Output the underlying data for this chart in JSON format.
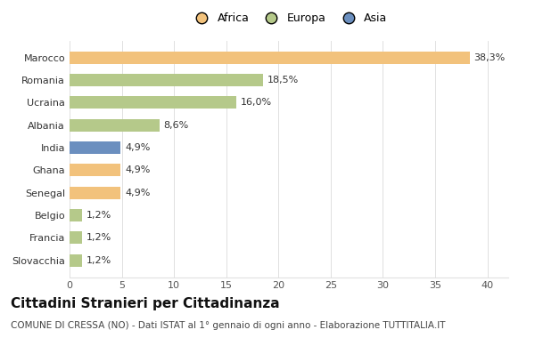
{
  "categories": [
    "Marocco",
    "Romania",
    "Ucraina",
    "Albania",
    "India",
    "Ghana",
    "Senegal",
    "Belgio",
    "Francia",
    "Slovacchia"
  ],
  "values": [
    38.3,
    18.5,
    16.0,
    8.6,
    4.9,
    4.9,
    4.9,
    1.2,
    1.2,
    1.2
  ],
  "labels": [
    "38,3%",
    "18,5%",
    "16,0%",
    "8,6%",
    "4,9%",
    "4,9%",
    "4,9%",
    "1,2%",
    "1,2%",
    "1,2%"
  ],
  "colors": [
    "#F2C27C",
    "#B5C98A",
    "#B5C98A",
    "#B5C98A",
    "#6B8FBF",
    "#F2C27C",
    "#F2C27C",
    "#B5C98A",
    "#B5C98A",
    "#B5C98A"
  ],
  "legend_labels": [
    "Africa",
    "Europa",
    "Asia"
  ],
  "legend_colors": [
    "#F2C27C",
    "#B5C98A",
    "#6B8FBF"
  ],
  "title": "Cittadini Stranieri per Cittadinanza",
  "subtitle": "COMUNE DI CRESSA (NO) - Dati ISTAT al 1° gennaio di ogni anno - Elaborazione TUTTITALIA.IT",
  "xlim": [
    0,
    42
  ],
  "background_color": "#ffffff",
  "grid_color": "#e0e0e0",
  "label_fontsize": 8,
  "ytick_fontsize": 8,
  "xtick_fontsize": 8,
  "title_fontsize": 11,
  "subtitle_fontsize": 7.5
}
